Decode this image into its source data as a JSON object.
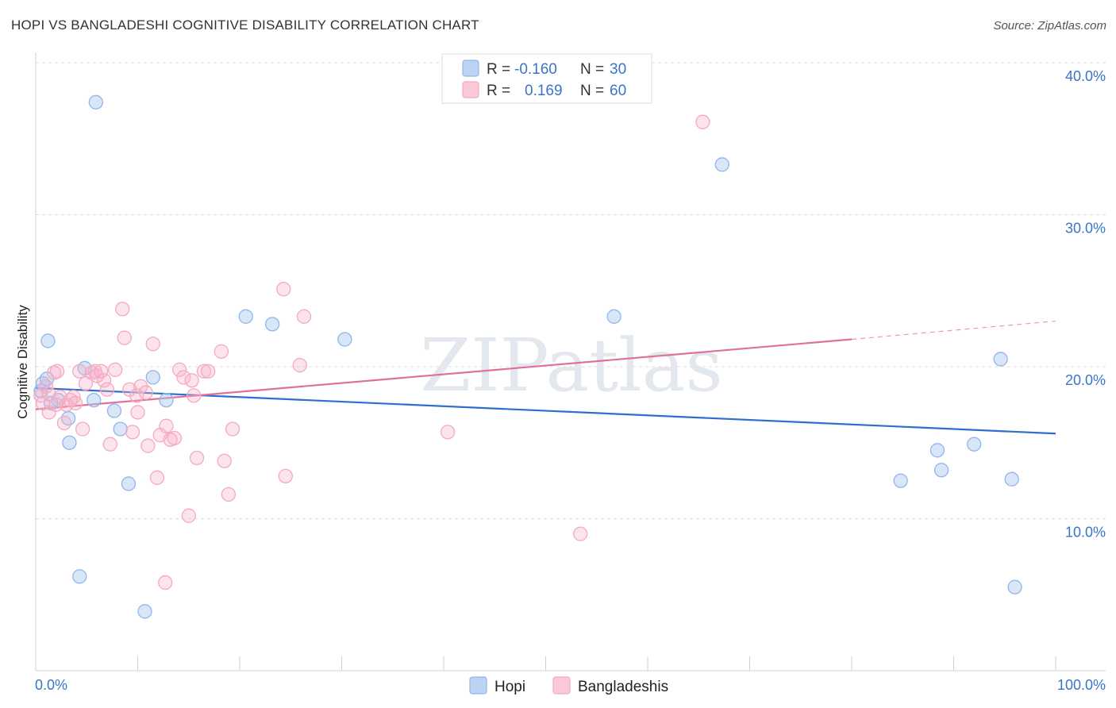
{
  "title": "HOPI VS BANGLADESHI COGNITIVE DISABILITY CORRELATION CHART",
  "source": "Source: ZipAtlas.com",
  "chart_data": {
    "type": "scatter",
    "xlabel": "",
    "ylabel": "Cognitive Disability",
    "xlim": [
      0,
      100
    ],
    "ylim": [
      0,
      40
    ],
    "x_tick_labels": [
      "0.0%",
      "100.0%"
    ],
    "y_ticks": [
      10,
      20,
      30,
      40
    ],
    "y_tick_labels": [
      "10.0%",
      "20.0%",
      "30.0%",
      "40.0%"
    ],
    "grid": true,
    "watermark": "ZIPatlas",
    "legend_position": "bottom-center",
    "stats": [
      {
        "series": "Hopi",
        "r_label": "R =",
        "r": "-0.160",
        "n_label": "N =",
        "n": "30"
      },
      {
        "series": "Bangladeshis",
        "r_label": "R =",
        "r": "0.169",
        "n_label": "N =",
        "n": "60"
      }
    ],
    "series": [
      {
        "name": "Hopi",
        "color": "#8fb6ec",
        "line_color": "#2e6fcb",
        "trend": {
          "x0": 0,
          "y0": 18.6,
          "x1": 100,
          "y1": 15.6
        },
        "points": [
          [
            0.5,
            18.4
          ],
          [
            0.7,
            18.9
          ],
          [
            1.1,
            19.2
          ],
          [
            1.2,
            21.7
          ],
          [
            2.2,
            17.8
          ],
          [
            3.2,
            16.6
          ],
          [
            3.3,
            15.0
          ],
          [
            4.3,
            6.2
          ],
          [
            4.8,
            19.9
          ],
          [
            5.7,
            17.8
          ],
          [
            5.9,
            37.4
          ],
          [
            7.7,
            17.1
          ],
          [
            8.3,
            15.9
          ],
          [
            9.1,
            12.3
          ],
          [
            10.7,
            3.9
          ],
          [
            11.5,
            19.3
          ],
          [
            12.8,
            17.8
          ],
          [
            20.6,
            23.3
          ],
          [
            23.2,
            22.8
          ],
          [
            30.3,
            21.8
          ],
          [
            56.7,
            23.3
          ],
          [
            67.3,
            33.3
          ],
          [
            84.8,
            12.5
          ],
          [
            88.4,
            14.5
          ],
          [
            88.8,
            13.2
          ],
          [
            92.0,
            14.9
          ],
          [
            94.6,
            20.5
          ],
          [
            95.7,
            12.6
          ],
          [
            96.0,
            5.5
          ],
          [
            1.5,
            17.6
          ]
        ]
      },
      {
        "name": "Bangladeshis",
        "color": "#f4a9c2",
        "line_color": "#e0709a",
        "trend": {
          "x0": 0,
          "y0": 17.2,
          "x1": 80,
          "y1": 21.8
        },
        "trend_dashed_to": {
          "x": 100,
          "y": 23.0
        },
        "points": [
          [
            0.5,
            18.1
          ],
          [
            0.7,
            17.6
          ],
          [
            1.0,
            18.7
          ],
          [
            1.3,
            18.2
          ],
          [
            1.3,
            17.0
          ],
          [
            1.8,
            19.6
          ],
          [
            2.1,
            19.7
          ],
          [
            2.4,
            18.0
          ],
          [
            2.8,
            16.3
          ],
          [
            3.0,
            17.5
          ],
          [
            3.4,
            17.8
          ],
          [
            3.7,
            18.0
          ],
          [
            3.9,
            17.6
          ],
          [
            4.3,
            19.7
          ],
          [
            4.6,
            15.9
          ],
          [
            4.9,
            18.9
          ],
          [
            5.5,
            19.6
          ],
          [
            5.8,
            19.7
          ],
          [
            6.0,
            19.4
          ],
          [
            6.4,
            19.7
          ],
          [
            6.7,
            19.1
          ],
          [
            7.0,
            18.5
          ],
          [
            7.3,
            14.9
          ],
          [
            7.8,
            19.8
          ],
          [
            8.5,
            23.8
          ],
          [
            8.7,
            21.9
          ],
          [
            9.2,
            18.5
          ],
          [
            9.5,
            15.7
          ],
          [
            9.9,
            18.1
          ],
          [
            10.0,
            17.0
          ],
          [
            10.3,
            18.7
          ],
          [
            10.8,
            18.3
          ],
          [
            11.0,
            14.8
          ],
          [
            11.5,
            21.5
          ],
          [
            11.9,
            12.7
          ],
          [
            12.2,
            15.5
          ],
          [
            12.7,
            5.8
          ],
          [
            12.8,
            16.1
          ],
          [
            13.2,
            15.2
          ],
          [
            13.6,
            15.3
          ],
          [
            14.1,
            19.8
          ],
          [
            14.5,
            19.3
          ],
          [
            15.0,
            10.2
          ],
          [
            15.3,
            19.1
          ],
          [
            15.5,
            18.1
          ],
          [
            15.8,
            14.0
          ],
          [
            16.5,
            19.7
          ],
          [
            16.9,
            19.7
          ],
          [
            18.2,
            21.0
          ],
          [
            18.5,
            13.8
          ],
          [
            18.9,
            11.6
          ],
          [
            19.3,
            15.9
          ],
          [
            24.3,
            25.1
          ],
          [
            24.5,
            12.8
          ],
          [
            25.9,
            20.1
          ],
          [
            26.3,
            23.3
          ],
          [
            40.4,
            15.7
          ],
          [
            53.4,
            9.0
          ],
          [
            65.4,
            36.1
          ],
          [
            2.0,
            17.5
          ]
        ]
      }
    ]
  }
}
